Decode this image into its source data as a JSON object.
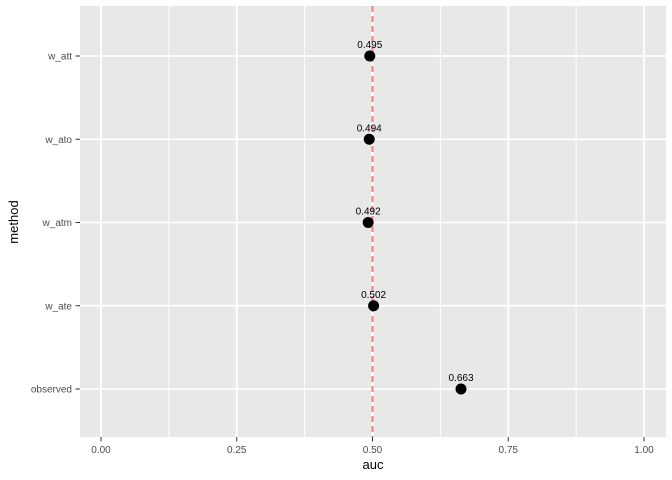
{
  "chart_data": {
    "type": "scatter",
    "orientation": "horizontal_categorical",
    "title": "",
    "xlabel": "auc",
    "ylabel": "method",
    "categories": [
      "w_att",
      "w_ato",
      "w_atm",
      "w_ate",
      "observed"
    ],
    "values": [
      0.495,
      0.494,
      0.492,
      0.502,
      0.663
    ],
    "point_labels": [
      "0.495",
      "0.494",
      "0.492",
      "0.502",
      "0.663"
    ],
    "xlim": [
      0,
      1
    ],
    "x_ticks": [
      0,
      0.25,
      0.5,
      0.75,
      1
    ],
    "x_tick_labels": [
      "0.00",
      "0.25",
      "0.50",
      "0.75",
      "1.00"
    ],
    "x_minor_ticks": [
      0.125,
      0.375,
      0.625,
      0.875
    ],
    "reference_line": {
      "x": 0.5,
      "style": "dashed",
      "color": "#F28080"
    },
    "grid": true,
    "legend": "none",
    "colors": {
      "figure_background": "#FFFFFF",
      "panel_background": "#E8E8E8",
      "grid": "#FFFFFF",
      "point": "#000000",
      "point_label": "#000000",
      "tick_mark": "#333333",
      "tick_label": "#4D4D4D",
      "axis_title": "#000000"
    }
  }
}
